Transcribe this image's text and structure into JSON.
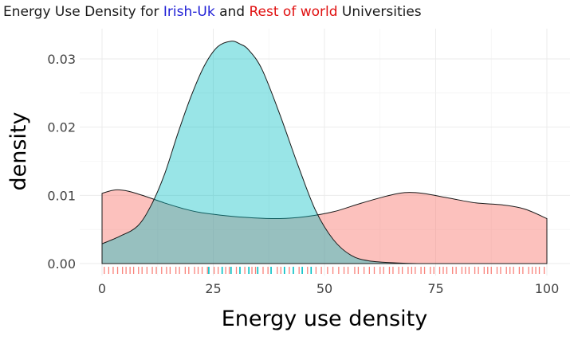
{
  "chart_data": {
    "type": "area",
    "title_parts": [
      {
        "text": "Energy Use Density for ",
        "color": "#1a1a1a"
      },
      {
        "text": "Irish-Uk",
        "color": "#1f1fd6"
      },
      {
        "text": " and ",
        "color": "#1a1a1a"
      },
      {
        "text": "Rest of world",
        "color": "#e01010"
      },
      {
        "text": " Universities",
        "color": "#1a1a1a"
      }
    ],
    "xlabel": "Energy use density",
    "ylabel": "density",
    "xlim": [
      0,
      100
    ],
    "ylim": [
      0,
      0.033
    ],
    "xticks": [
      0,
      25,
      50,
      75,
      100
    ],
    "xtick_labels": [
      "0",
      "25",
      "50",
      "75",
      "100"
    ],
    "yticks": [
      0,
      0.01,
      0.02,
      0.03
    ],
    "ytick_labels": [
      "0.00",
      "0.01",
      "0.02",
      "0.03"
    ],
    "grid": true,
    "legend": "none",
    "series": [
      {
        "group": "Rest of world",
        "fill": "#f8766d",
        "fill_opacity": 0.45,
        "x": [
          0,
          3,
          6,
          10,
          14,
          18,
          22,
          28,
          34,
          40,
          46,
          52,
          58,
          64,
          68,
          72,
          78,
          84,
          90,
          95,
          100
        ],
        "y": [
          0.0103,
          0.0108,
          0.0106,
          0.0098,
          0.0089,
          0.0081,
          0.0075,
          0.007,
          0.0067,
          0.0066,
          0.0069,
          0.0076,
          0.0088,
          0.0099,
          0.0104,
          0.0103,
          0.0096,
          0.0089,
          0.0086,
          0.008,
          0.0066
        ]
      },
      {
        "group": "Irish-Uk",
        "fill": "#00bfc4",
        "fill_opacity": 0.4,
        "x": [
          0,
          4,
          8,
          11,
          14,
          17,
          20,
          23,
          26,
          29,
          31,
          33,
          36,
          40,
          44,
          48,
          52,
          56,
          60,
          66,
          72,
          80,
          90,
          100
        ],
        "y": [
          0.0029,
          0.004,
          0.0055,
          0.0085,
          0.013,
          0.019,
          0.0245,
          0.029,
          0.0318,
          0.0326,
          0.0322,
          0.0313,
          0.0284,
          0.0218,
          0.0145,
          0.0078,
          0.0035,
          0.0012,
          0.0004,
          0.0001,
          0,
          0,
          0,
          0
        ]
      }
    ],
    "rug": {
      "rest_color": "#f8766d",
      "irish_color": "#00bfc4",
      "irish_x": [
        24,
        27,
        29,
        31,
        33,
        35,
        38,
        41,
        43,
        45,
        47
      ],
      "rest_x": [
        0.5,
        1.5,
        2.5,
        3.5,
        4.6,
        5.4,
        6.3,
        7.1,
        8.2,
        9.0,
        10.1,
        11.3,
        12.2,
        13.4,
        14.5,
        15.3,
        16.6,
        17.4,
        18.7,
        19.5,
        20.8,
        21.6,
        22.5,
        23.7,
        25.2,
        26.1,
        27.8,
        28.6,
        30.2,
        32.1,
        33.7,
        34.5,
        36.2,
        37.3,
        39.4,
        40.2,
        42.1,
        44.3,
        46.2,
        48.1,
        49.3,
        50.7,
        51.9,
        53.2,
        54.4,
        55.3,
        56.8,
        57.6,
        58.9,
        60.1,
        61.2,
        62.5,
        63.3,
        64.6,
        65.4,
        66.7,
        67.5,
        68.8,
        69.6,
        70.4,
        71.7,
        72.5,
        73.8,
        74.6,
        75.9,
        76.7,
        77.5,
        78.8,
        79.6,
        80.9,
        81.7,
        82.5,
        83.8,
        84.6,
        85.9,
        86.7,
        87.5,
        88.8,
        89.6,
        90.9,
        91.7,
        92.5,
        93.8,
        94.6,
        95.9,
        96.7,
        97.5,
        98.3,
        99.4
      ]
    }
  }
}
